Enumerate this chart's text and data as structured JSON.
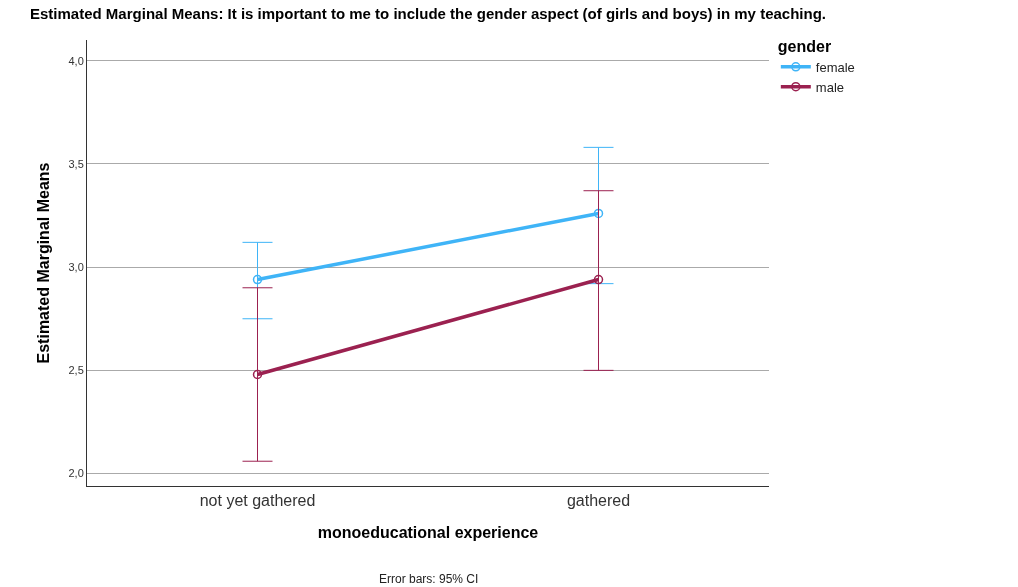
{
  "chart_data": {
    "type": "line",
    "title": "Estimated Marginal Means: It is important to me to include the gender aspect (of girls and boys) in my teaching.",
    "xlabel": "monoeducational experience",
    "ylabel": "Estimated Marginal Means",
    "legend_title": "gender",
    "categories": [
      "not yet gathered",
      "gathered"
    ],
    "series": [
      {
        "name": "female",
        "color": "#3fb4f7",
        "values": [
          2.94,
          3.26
        ],
        "errors": [
          [
            2.75,
            3.12
          ],
          [
            2.92,
            3.58
          ]
        ]
      },
      {
        "name": "male",
        "color": "#9b2150",
        "values": [
          2.48,
          2.94
        ],
        "errors": [
          [
            2.06,
            2.9
          ],
          [
            2.5,
            3.37
          ]
        ]
      }
    ],
    "ylim": [
      1.94,
      4.1
    ],
    "yticks": [
      {
        "value": 2,
        "label": "2,0"
      },
      {
        "value": 2.5,
        "label": "2,5"
      },
      {
        "value": 3,
        "label": "3,0"
      },
      {
        "value": 3.5,
        "label": "3,5"
      },
      {
        "value": 4,
        "label": "4,0"
      }
    ],
    "grid": "y",
    "legend": "top right",
    "marker": "circle",
    "line_style": "solid",
    "annotations": [
      "Error bars: 95% CI"
    ]
  }
}
